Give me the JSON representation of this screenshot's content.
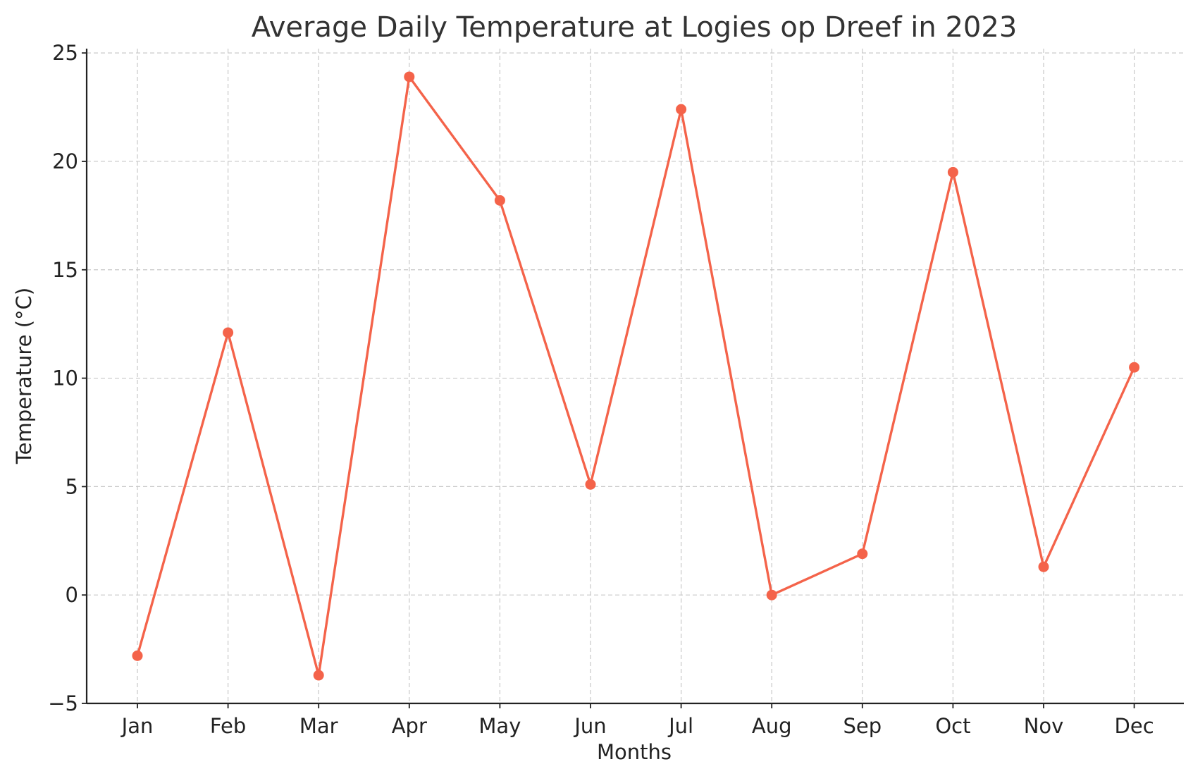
{
  "chart_data": {
    "type": "line",
    "title": "Average Daily Temperature at Logies op Dreef in 2023",
    "xlabel": "Months",
    "ylabel": "Temperature (°C)",
    "categories": [
      "Jan",
      "Feb",
      "Mar",
      "Apr",
      "May",
      "Jun",
      "Jul",
      "Aug",
      "Sep",
      "Oct",
      "Nov",
      "Dec"
    ],
    "series": [
      {
        "name": "Temperature",
        "values": [
          -2.8,
          12.1,
          -3.7,
          23.9,
          18.2,
          5.1,
          22.4,
          0.0,
          1.9,
          19.5,
          1.3,
          10.5
        ]
      }
    ],
    "ylim": [
      -5,
      25.2
    ],
    "yticks": [
      -5,
      0,
      5,
      10,
      15,
      20,
      25
    ],
    "ytick_labels": [
      "−5",
      "0",
      "5",
      "10",
      "15",
      "20",
      "25"
    ],
    "grid": true,
    "colors": {
      "line": "#f4634a",
      "marker": "#f4634a"
    }
  }
}
